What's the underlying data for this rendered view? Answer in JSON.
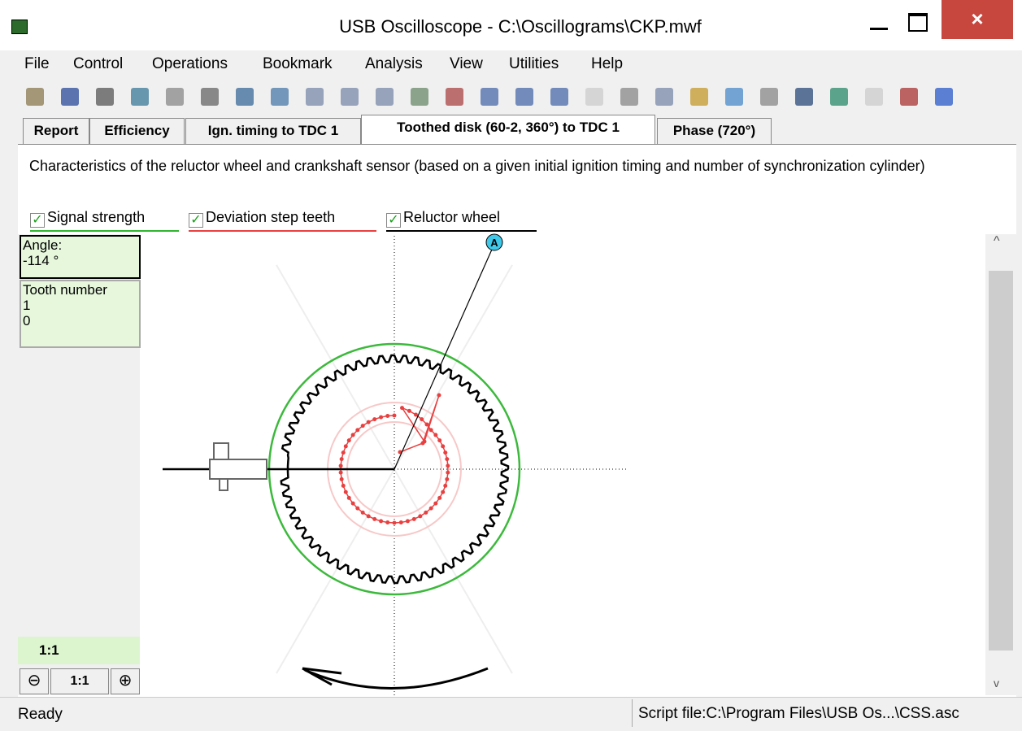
{
  "window": {
    "title": "USB Oscilloscope - C:\\Oscillograms\\CKP.mwf"
  },
  "menu": [
    "File",
    "Control",
    "Operations",
    "Bookmark",
    "Analysis",
    "View",
    "Utilities",
    "Help"
  ],
  "tabs": [
    "Report",
    "Efficiency",
    "Ign. timing to TDC 1",
    "Toothed disk (60-2, 360°) to TDC 1",
    "Phase (720°)"
  ],
  "description": "Characteristics of the reluctor wheel and crankshaft sensor (based on a given initial ignition timing and number of synchronization cylinder)",
  "checkboxes": [
    "Signal strength",
    "Deviation step teeth",
    "Reluctor wheel"
  ],
  "info": {
    "angle_label": "Angle:",
    "angle_value": "-114 °",
    "tooth_label": "Tooth number",
    "tooth_lines": [
      "1",
      "0"
    ]
  },
  "scale": {
    "current": "1:1",
    "reset": "1:1"
  },
  "marker": "A",
  "status": {
    "left": "Ready",
    "right": "Script file:C:\\Program Files\\USB Os...\\CSS.asc"
  }
}
